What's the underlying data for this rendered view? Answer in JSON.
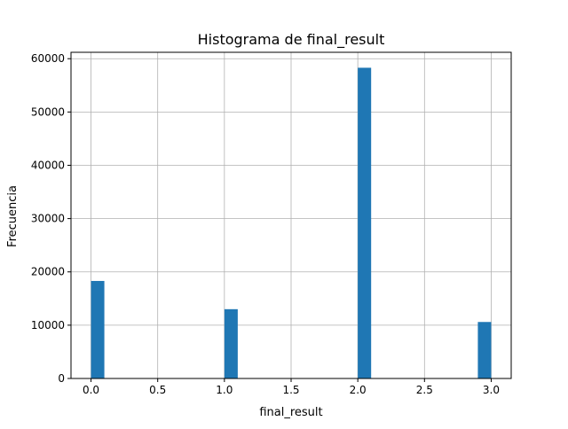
{
  "chart_data": {
    "type": "bar",
    "title": "Histograma de final_result",
    "xlabel": "final_result",
    "ylabel": "Frecuencia",
    "bins": 30,
    "bin_range": [
      0,
      3
    ],
    "bars": [
      {
        "x_start": 0.0,
        "x_end": 0.1,
        "value": 18300
      },
      {
        "x_start": 1.0,
        "x_end": 1.1,
        "value": 13000
      },
      {
        "x_start": 2.0,
        "x_end": 2.1,
        "value": 58300
      },
      {
        "x_start": 2.9,
        "x_end": 3.0,
        "value": 10600
      }
    ],
    "xlim": [
      -0.15,
      3.15
    ],
    "ylim": [
      0,
      61200
    ],
    "xticks": [
      0.0,
      0.5,
      1.0,
      1.5,
      2.0,
      2.5,
      3.0
    ],
    "xtick_labels": [
      "0.0",
      "0.5",
      "1.0",
      "1.5",
      "2.0",
      "2.5",
      "3.0"
    ],
    "yticks": [
      0,
      10000,
      20000,
      30000,
      40000,
      50000,
      60000
    ],
    "ytick_labels": [
      "0",
      "10000",
      "20000",
      "30000",
      "40000",
      "50000",
      "60000"
    ],
    "grid": true,
    "bar_color": "#1f77b4",
    "grid_color": "#b0b0b0"
  }
}
